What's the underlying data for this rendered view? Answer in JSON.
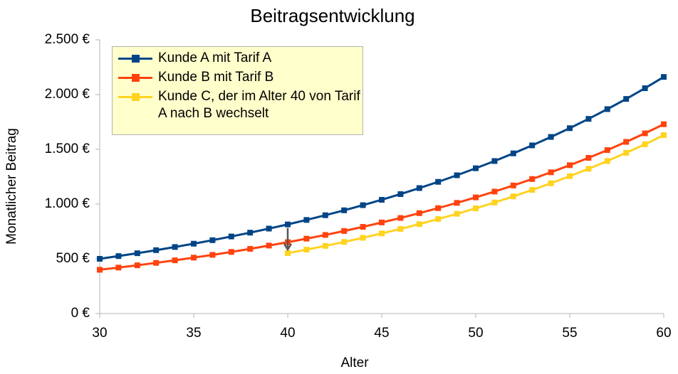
{
  "chart_data": {
    "type": "line",
    "title": "Beitragsentwicklung",
    "x_label": "Alter",
    "y_label": "Monatlicher Beitrag",
    "x": [
      30,
      31,
      32,
      33,
      34,
      35,
      36,
      37,
      38,
      39,
      40,
      41,
      42,
      43,
      44,
      45,
      46,
      47,
      48,
      49,
      50,
      51,
      52,
      53,
      54,
      55,
      56,
      57,
      58,
      59,
      60
    ],
    "series": [
      {
        "name": "Kunde A mit Tarif A",
        "color": "#004586",
        "values": [
          500,
          525,
          551,
          579,
          608,
          638,
          670,
          704,
          739,
          776,
          814,
          855,
          898,
          943,
          990,
          1039,
          1091,
          1146,
          1203,
          1263,
          1327,
          1393,
          1463,
          1536,
          1613,
          1693,
          1778,
          1867,
          1960,
          2058,
          2161
        ]
      },
      {
        "name": "Kunde B mit Tarif B",
        "color": "#ff420e",
        "values": [
          400,
          420,
          441,
          463,
          486,
          511,
          536,
          563,
          591,
          621,
          652,
          684,
          718,
          754,
          792,
          832,
          873,
          917,
          963,
          1011,
          1061,
          1114,
          1170,
          1229,
          1290,
          1355,
          1422,
          1493,
          1568,
          1646,
          1729
        ]
      },
      {
        "name": "Kunde C, der im Alter 40 von Tarif A nach B wechselt",
        "color": "#ffd320",
        "values": [
          null,
          null,
          null,
          null,
          null,
          null,
          null,
          null,
          null,
          null,
          552,
          584,
          618,
          654,
          692,
          732,
          773,
          817,
          863,
          911,
          961,
          1014,
          1070,
          1129,
          1190,
          1255,
          1322,
          1393,
          1468,
          1546,
          1629
        ]
      }
    ],
    "xlim": [
      30,
      60
    ],
    "xticks": [
      30,
      35,
      40,
      45,
      50,
      55,
      60
    ],
    "ylim": [
      0,
      2500
    ],
    "yticks": [
      {
        "value": 0,
        "label": "0 €"
      },
      {
        "value": 500,
        "label": "500 €"
      },
      {
        "value": 1000,
        "label": "1.000 €"
      },
      {
        "value": 1500,
        "label": "1.500 €"
      },
      {
        "value": 2000,
        "label": "2.000 €"
      },
      {
        "value": 2500,
        "label": "2.500 €"
      }
    ],
    "grid": false,
    "legend": "top-left"
  }
}
